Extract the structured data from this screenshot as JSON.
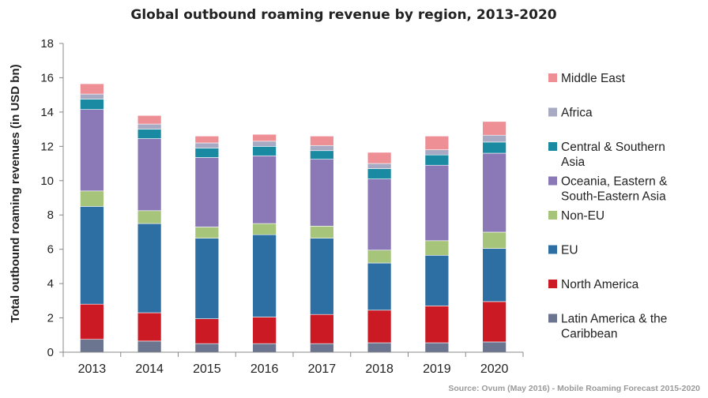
{
  "chart_data": {
    "type": "bar",
    "stacked": true,
    "title": "Global outbound roaming revenue by region, 2013-2020",
    "ylabel": "Total outbound roaming revenues (in USD bn)",
    "xlabel": "",
    "ylim": [
      0,
      18
    ],
    "yticks": [
      0,
      2,
      4,
      6,
      8,
      10,
      12,
      14,
      16,
      18
    ],
    "grid": false,
    "legend_position": "right",
    "categories": [
      "2013",
      "2014",
      "2015",
      "2016",
      "2017",
      "2018",
      "2019",
      "2020"
    ],
    "series": [
      {
        "name": "Latin America & the Caribbean",
        "color": "#6b7590",
        "values": [
          0.75,
          0.65,
          0.5,
          0.5,
          0.5,
          0.55,
          0.55,
          0.6
        ]
      },
      {
        "name": "North America",
        "color": "#cc1a24",
        "values": [
          2.05,
          1.65,
          1.45,
          1.55,
          1.7,
          1.9,
          2.15,
          2.35
        ]
      },
      {
        "name": "EU",
        "color": "#2e6fa3",
        "values": [
          5.7,
          5.2,
          4.7,
          4.8,
          4.45,
          2.75,
          2.95,
          3.1
        ]
      },
      {
        "name": "Non-EU",
        "color": "#a6c47a",
        "values": [
          0.9,
          0.75,
          0.65,
          0.65,
          0.7,
          0.75,
          0.85,
          0.95
        ]
      },
      {
        "name": "Oceania, Eastern & South-Eastern Asia",
        "color": "#8b78b6",
        "values": [
          4.75,
          4.2,
          4.05,
          3.95,
          3.9,
          4.15,
          4.4,
          4.6
        ]
      },
      {
        "name": "Central & Southern Asia",
        "color": "#1a8aa3",
        "values": [
          0.6,
          0.55,
          0.55,
          0.55,
          0.5,
          0.6,
          0.6,
          0.65
        ]
      },
      {
        "name": "Africa",
        "color": "#a8a9c3",
        "values": [
          0.3,
          0.3,
          0.3,
          0.3,
          0.3,
          0.3,
          0.3,
          0.4
        ]
      },
      {
        "name": "Middle East",
        "color": "#ee8f95",
        "values": [
          0.6,
          0.5,
          0.4,
          0.4,
          0.55,
          0.65,
          0.8,
          0.8
        ]
      }
    ]
  },
  "legend": {
    "items": [
      {
        "lines": [
          "Middle East"
        ],
        "series": 7
      },
      {
        "lines": [
          "Africa"
        ],
        "series": 6
      },
      {
        "lines": [
          "Central & Southern",
          "Asia"
        ],
        "series": 5
      },
      {
        "lines": [
          "Oceania, Eastern &",
          "South-Eastern Asia"
        ],
        "series": 4
      },
      {
        "lines": [
          "Non-EU"
        ],
        "series": 3
      },
      {
        "lines": [
          "EU"
        ],
        "series": 2
      },
      {
        "lines": [
          "North America"
        ],
        "series": 1
      },
      {
        "lines": [
          "Latin America & the",
          "Caribbean"
        ],
        "series": 0
      }
    ]
  },
  "source": "Source: Ovum (May 2016) - Mobile Roaming Forecast 2015-2020"
}
